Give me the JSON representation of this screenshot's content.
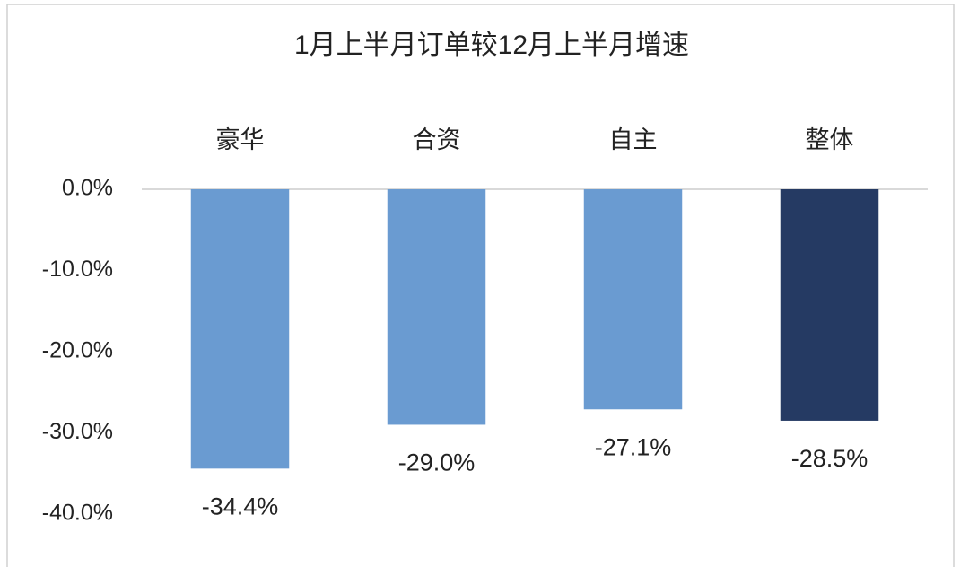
{
  "chart_data": {
    "type": "bar",
    "title": "1月上半月订单较12月上半月增速",
    "categories": [
      "豪华",
      "合资",
      "自主",
      "整体"
    ],
    "values": [
      -34.4,
      -29.0,
      -27.1,
      -28.5
    ],
    "value_labels": [
      "-34.4%",
      "-29.0%",
      "-27.1%",
      "-28.5%"
    ],
    "colors": [
      "#6a9bd1",
      "#6a9bd1",
      "#6a9bd1",
      "#253a63"
    ],
    "ylim": [
      -40,
      0
    ],
    "yticks": [
      {
        "value": 0,
        "label": "0.0%"
      },
      {
        "value": -10,
        "label": "-10.0%"
      },
      {
        "value": -20,
        "label": "-20.0%"
      },
      {
        "value": -30,
        "label": "-30.0%"
      },
      {
        "value": -40,
        "label": "-40.0%"
      }
    ],
    "grid": false
  }
}
